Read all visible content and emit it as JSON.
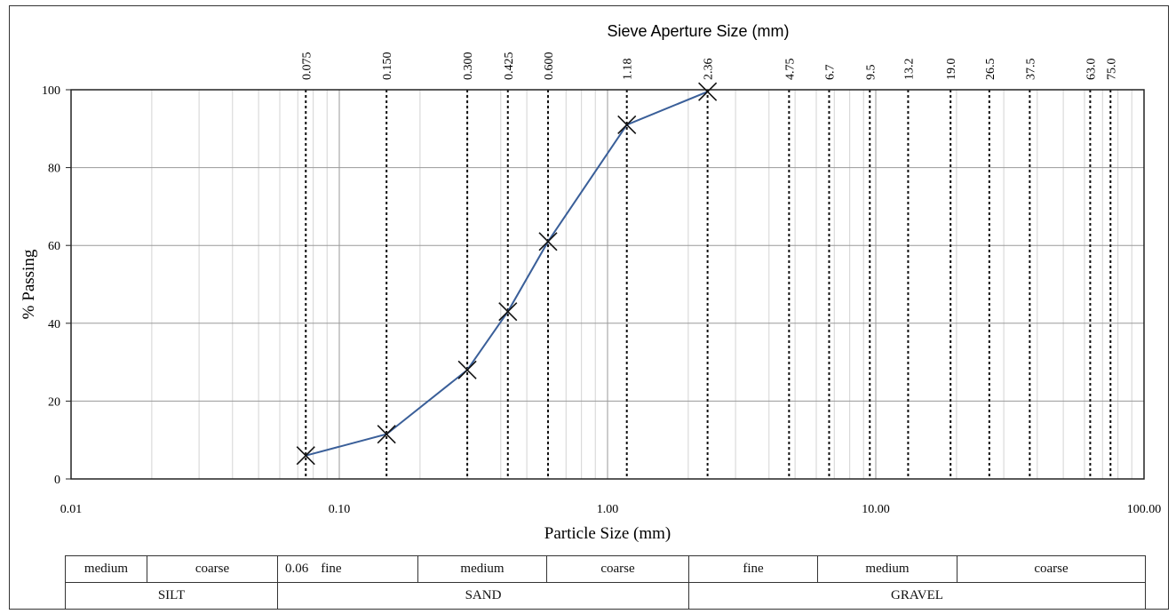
{
  "chart_data": {
    "type": "line",
    "title": "Sieve Aperture Size (mm)",
    "xlabel": "Particle Size (mm)",
    "ylabel": "% Passing",
    "xscale": "log",
    "xlim": [
      0.01,
      100
    ],
    "ylim": [
      0,
      100
    ],
    "x_tick_labels": [
      "0.01",
      "0.10",
      "1.00",
      "10.00",
      "100.00"
    ],
    "x_tick_values": [
      0.01,
      0.1,
      1,
      10,
      100
    ],
    "y_tick_labels": [
      "0",
      "20",
      "40",
      "60",
      "80",
      "100"
    ],
    "y_tick_values": [
      0,
      20,
      40,
      60,
      80,
      100
    ],
    "grid": true,
    "sieves": [
      {
        "label": "0.075",
        "value": 0.075
      },
      {
        "label": "0.150",
        "value": 0.15
      },
      {
        "label": "0.300",
        "value": 0.3
      },
      {
        "label": "0.425",
        "value": 0.425
      },
      {
        "label": "0.600",
        "value": 0.6
      },
      {
        "label": "1.18",
        "value": 1.18
      },
      {
        "label": "2.36",
        "value": 2.36
      },
      {
        "label": "4.75",
        "value": 4.75
      },
      {
        "label": "6.7",
        "value": 6.7
      },
      {
        "label": "9.5",
        "value": 9.5
      },
      {
        "label": "13.2",
        "value": 13.2
      },
      {
        "label": "19.0",
        "value": 19.0
      },
      {
        "label": "26.5",
        "value": 26.5
      },
      {
        "label": "37.5",
        "value": 37.5
      },
      {
        "label": "63.0",
        "value": 63.0
      },
      {
        "label": "75.0",
        "value": 75.0
      }
    ],
    "series": [
      {
        "x": [
          0.075,
          0.15,
          0.3,
          0.425,
          0.6,
          1.18,
          2.36
        ],
        "y": [
          6,
          11.5,
          28,
          43,
          61,
          91,
          99.5
        ]
      }
    ],
    "colors": {
      "line": "#3a5f99",
      "marker": "#111111",
      "grid": "#c8c8c8",
      "sieve": "#111111"
    }
  },
  "classification": {
    "row1": [
      {
        "text": "medium"
      },
      {
        "text": "coarse"
      },
      {
        "prefix": "0.06",
        "text": "fine"
      },
      {
        "text": "medium"
      },
      {
        "text": "coarse"
      },
      {
        "text": "fine"
      },
      {
        "text": "medium"
      },
      {
        "text": "coarse"
      }
    ],
    "row2": [
      "SILT",
      "SAND",
      "GRAVEL"
    ]
  }
}
